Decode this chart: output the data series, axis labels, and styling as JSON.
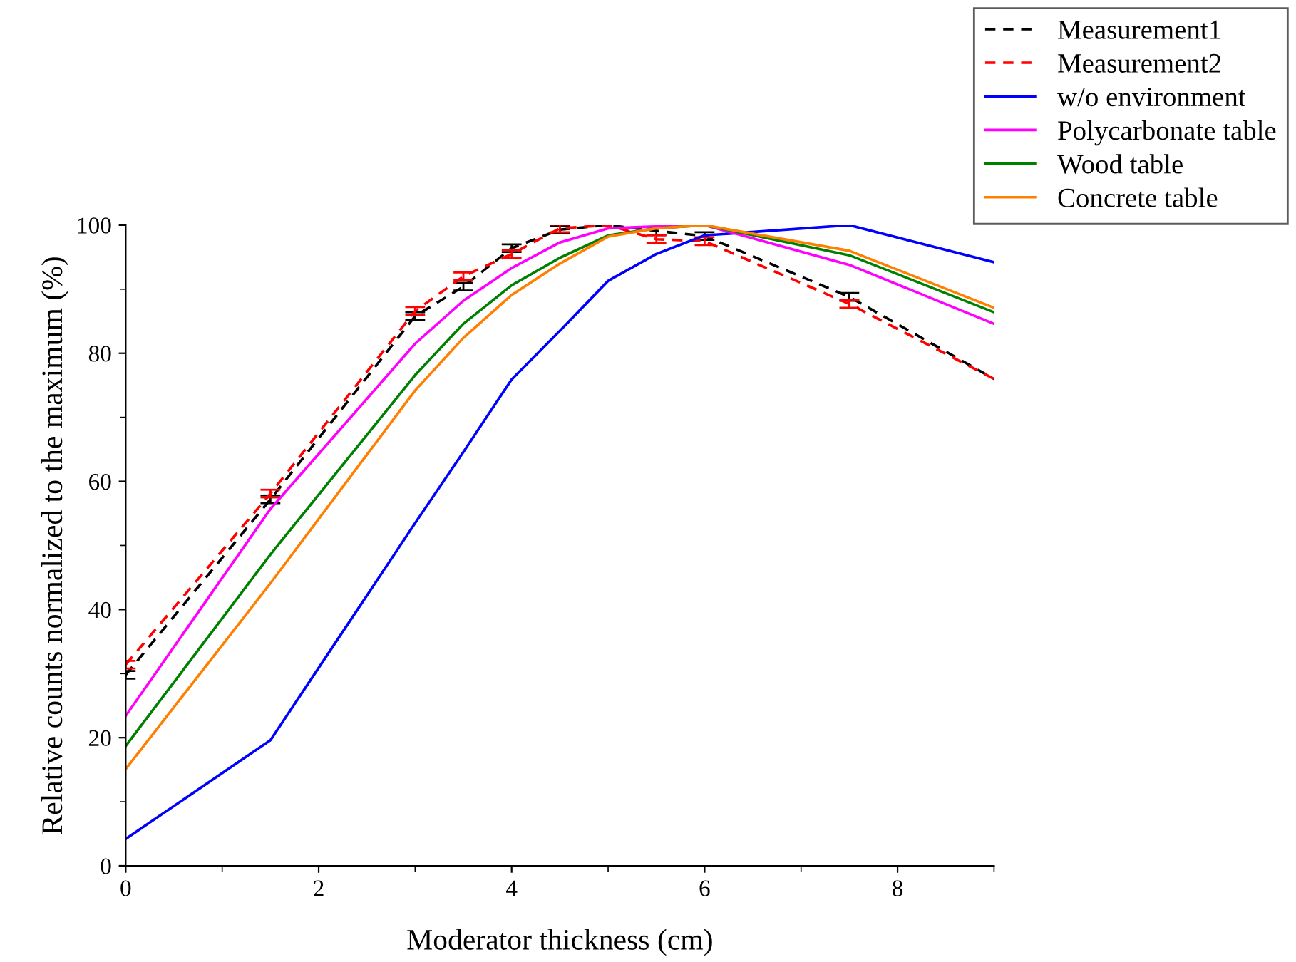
{
  "chart_data": {
    "type": "line",
    "xlabel": "Moderator thickness (cm)",
    "ylabel": "Relative counts normalized to the maximum (%)",
    "x": [
      0,
      1.5,
      3,
      3.5,
      4,
      4.5,
      5,
      5.5,
      6,
      7.5,
      9
    ],
    "xlim": [
      0,
      9
    ],
    "xticks": [
      0,
      2,
      4,
      6,
      8
    ],
    "ylim": [
      0,
      100
    ],
    "yticks": [
      0,
      20,
      40,
      60,
      80,
      100
    ],
    "grid": false,
    "legend": "top right",
    "marker": "none",
    "series": [
      {
        "name": "Measurement1",
        "color": "#000000",
        "line_style": "dashed",
        "values": [
          29.8,
          57.2,
          85.8,
          90.4,
          96.4,
          99.3,
          100,
          99.1,
          98.3,
          88.8,
          76
        ],
        "errors": [
          0.6,
          0.6,
          0.6,
          0.6,
          0.6,
          0.6,
          null,
          0.6,
          0.6,
          0.6,
          null
        ]
      },
      {
        "name": "Measurement2",
        "color": "#ff0000",
        "line_style": "dashed",
        "values": [
          31.4,
          58.1,
          86.6,
          92,
          95.5,
          99.5,
          100,
          97.8,
          97.5,
          87.7,
          76
        ],
        "errors": [
          0.6,
          0.6,
          0.6,
          0.6,
          0.6,
          0.6,
          null,
          0.6,
          0.6,
          0.6,
          null
        ]
      },
      {
        "name": "w/o environment",
        "color": "#0000ff",
        "line_style": "solid",
        "values": [
          4.2,
          19.6,
          53.5,
          64.6,
          75.9,
          83.5,
          91.3,
          95.5,
          98.4,
          100,
          94.2
        ]
      },
      {
        "name": "Polycarbonate table",
        "color": "#ff00ff",
        "line_style": "solid",
        "values": [
          23.4,
          55.7,
          81.5,
          88.2,
          93.3,
          97.3,
          99.5,
          99.8,
          100,
          93.8,
          84.6
        ]
      },
      {
        "name": "Wood table",
        "color": "#008000",
        "line_style": "solid",
        "values": [
          18.7,
          48.6,
          76.6,
          84.6,
          90.6,
          94.9,
          98.4,
          99.5,
          100,
          95.3,
          86.4
        ]
      },
      {
        "name": "Concrete table",
        "color": "#ff8000",
        "line_style": "solid",
        "values": [
          15.1,
          44.1,
          74.2,
          82.4,
          89.1,
          94,
          98.2,
          99.5,
          100,
          96,
          87.1
        ]
      }
    ]
  }
}
